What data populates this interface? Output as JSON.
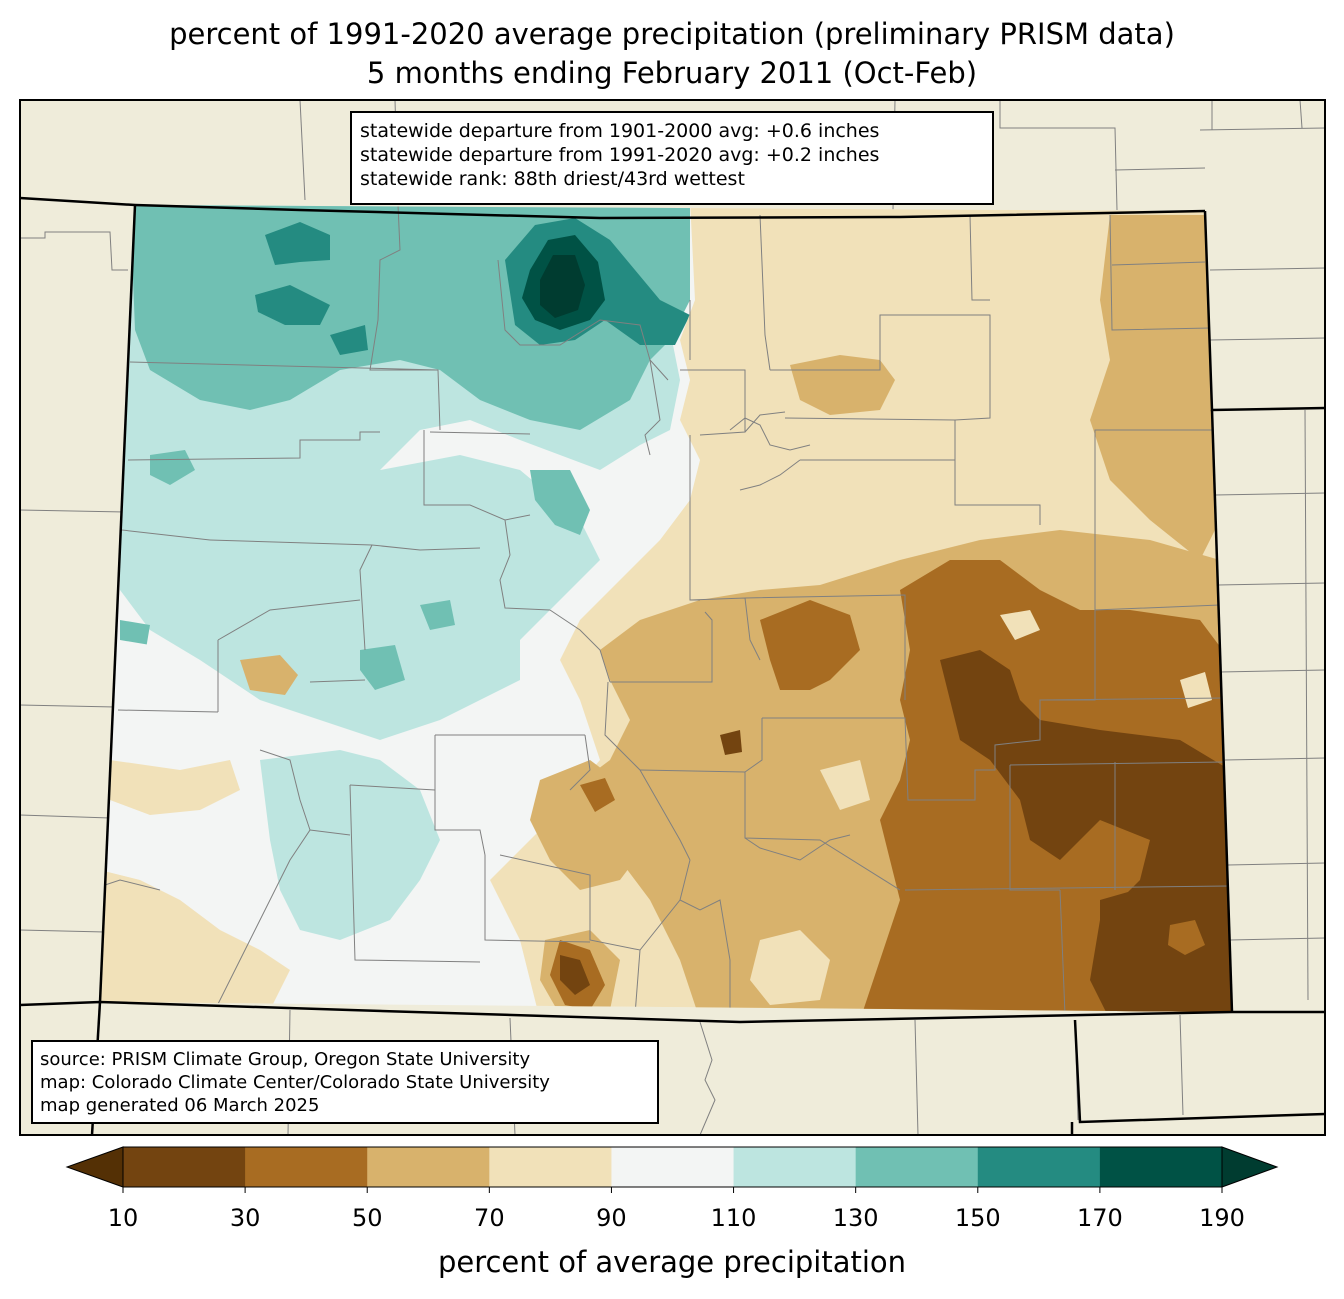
{
  "title": {
    "line1": "percent of 1991-2020 average precipitation (preliminary PRISM data)",
    "line2": "5 months ending February 2011 (Oct-Feb)"
  },
  "stats_box": {
    "line1": "statewide departure from 1901-2000 avg: +0.6 inches",
    "line2": "statewide departure from 1991-2020 avg: +0.2 inches",
    "line3": "statewide rank: 88th driest/43rd wettest"
  },
  "source_box": {
    "line1": "source: PRISM Climate Group, Oregon State University",
    "line2": "map: Colorado Climate Center/Colorado State University",
    "line3": "map generated 06 March 2025"
  },
  "colorbar": {
    "label": "percent of average precipitation",
    "ticks": [
      "10",
      "30",
      "50",
      "70",
      "90",
      "110",
      "130",
      "150",
      "170",
      "190"
    ],
    "colors": [
      "#734410",
      "#a86c22",
      "#d8b26c",
      "#f1e1b9",
      "#f3f5f4",
      "#bde5e0",
      "#70c0b3",
      "#248b81",
      "#005245"
    ],
    "under_color": "#543005",
    "over_color": "#003c30"
  },
  "colors": {
    "background_land": "#efecda",
    "state_border": "#000000",
    "county_border": "#808080"
  }
}
